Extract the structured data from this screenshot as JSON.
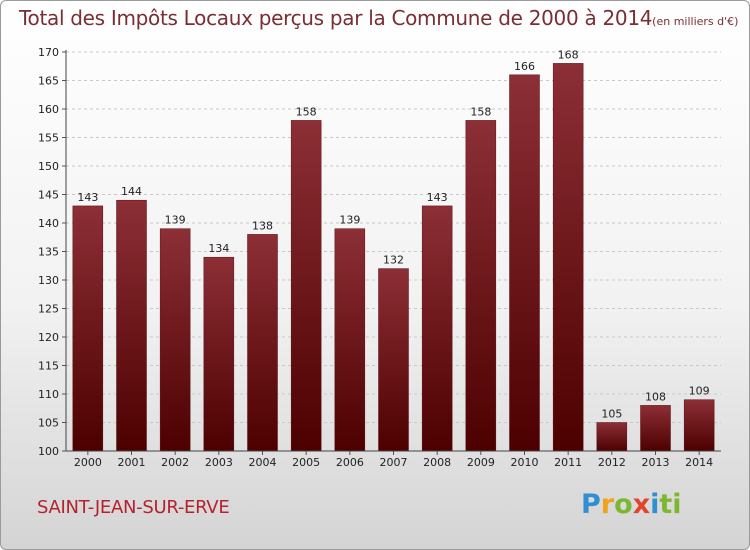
{
  "header": {
    "title": "Total des Impôts Locaux perçus par la Commune de 2000 à 2014",
    "unit": "(en milliers d'€)"
  },
  "footer": {
    "commune": "SAINT-JEAN-SUR-ERVE",
    "logo_letters": [
      "P",
      "r",
      "o",
      "x",
      "i",
      "t",
      "i"
    ]
  },
  "colors": {
    "bar_top": "#8c2f36",
    "bar_bottom": "#4d0000",
    "title": "#7a2e33",
    "commune": "#b5222e"
  },
  "chart_data": {
    "type": "bar",
    "title": "Total des Impôts Locaux perçus par la Commune de 2000 à 2014",
    "xlabel": "",
    "ylabel": "",
    "categories": [
      "2000",
      "2001",
      "2002",
      "2003",
      "2004",
      "2005",
      "2006",
      "2007",
      "2008",
      "2009",
      "2010",
      "2011",
      "2012",
      "2013",
      "2014"
    ],
    "values": [
      143,
      144,
      139,
      134,
      138,
      158,
      139,
      132,
      143,
      158,
      166,
      168,
      105,
      108,
      109
    ],
    "ylim": [
      100,
      170
    ],
    "yticks": [
      100,
      105,
      110,
      115,
      120,
      125,
      130,
      135,
      140,
      145,
      150,
      155,
      160,
      165,
      170
    ],
    "grid": "horizontal-dashed"
  }
}
